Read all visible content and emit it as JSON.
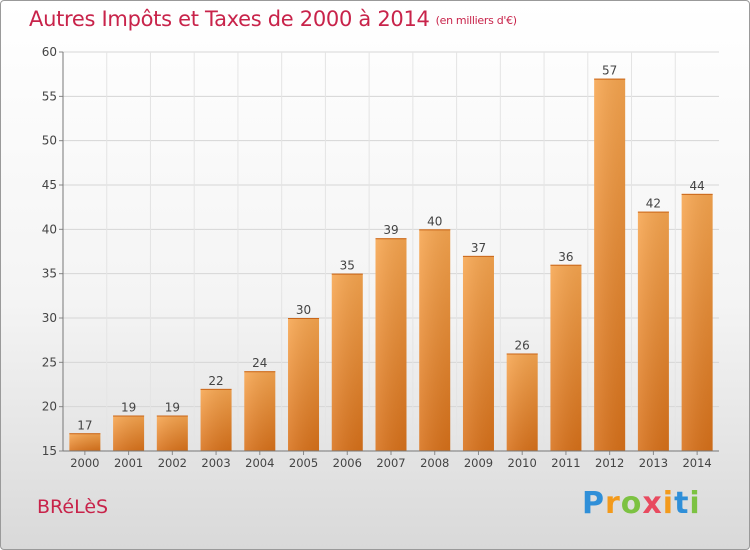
{
  "chart_data": {
    "type": "bar",
    "title": "Autres Impôts et Taxes de 2000 à 2014",
    "unit": "(en milliers d'€)",
    "categories": [
      "2000",
      "2001",
      "2002",
      "2003",
      "2004",
      "2005",
      "2006",
      "2007",
      "2008",
      "2009",
      "2010",
      "2011",
      "2012",
      "2013",
      "2014"
    ],
    "values": [
      17,
      19,
      19,
      22,
      24,
      30,
      35,
      39,
      40,
      37,
      26,
      36,
      57,
      42,
      44
    ],
    "ylim": [
      15,
      60
    ],
    "yticks": [
      15,
      20,
      25,
      30,
      35,
      40,
      45,
      50,
      55,
      60
    ],
    "grid": true,
    "bar_color": "#f0902a"
  },
  "commune": "BRéLèS",
  "brand": {
    "letters": [
      "P",
      "r",
      "o",
      "x",
      "i",
      "t",
      "i"
    ],
    "colors": [
      "#2f8fd8",
      "#f39a1b",
      "#7cc242",
      "#e84a5f",
      "#f39a1b",
      "#2f8fd8",
      "#7cc242"
    ]
  }
}
